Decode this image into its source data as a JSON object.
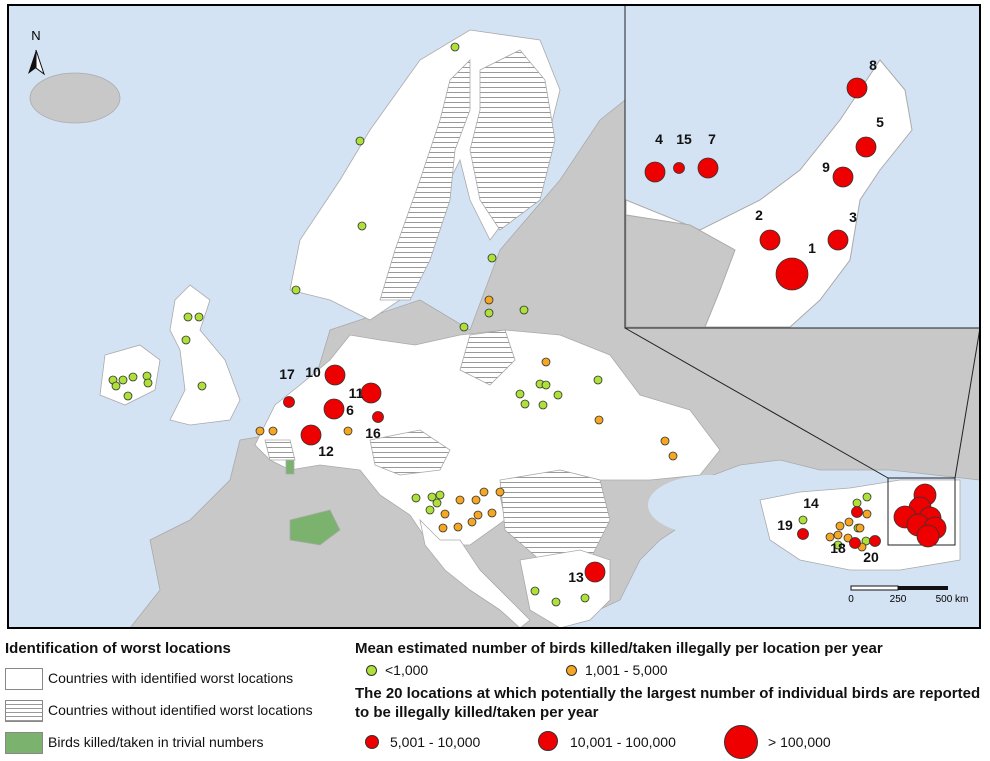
{
  "map": {
    "north_label": "N",
    "location_labels": [
      "1",
      "2",
      "3",
      "4",
      "5",
      "6",
      "7",
      "8",
      "9",
      "10",
      "11",
      "12",
      "13",
      "14",
      "15",
      "16",
      "17",
      "18",
      "19",
      "20"
    ],
    "scale_labels": [
      "0",
      "250",
      "500 km"
    ]
  },
  "legend": {
    "country_title": "Identification of worst locations",
    "country_items": [
      "Countries with identified worst locations",
      "Countries without identified worst locations",
      "Birds killed/taken in trivial numbers"
    ],
    "size_title": "Mean estimated number of birds killed/taken illegally per location per year",
    "size_items": [
      "<1,000",
      "1,001 - 5,000"
    ],
    "top_title": "The 20 locations at which potentially the largest number of individual birds are reported to be illegally killed/taken per year",
    "top_items": [
      "5,001 - 10,000",
      "10,001 - 100,000",
      "> 100,000"
    ]
  }
}
